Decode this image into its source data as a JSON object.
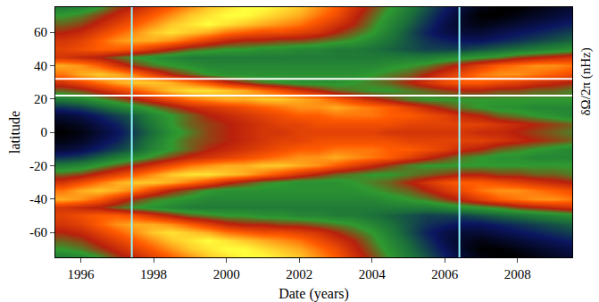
{
  "chart_data": {
    "type": "heatmap",
    "x_label": "Date (years)",
    "y_label": "latitude",
    "z_label": "δΩ/2π (nHz)",
    "xlim": [
      1995.3,
      2009.5
    ],
    "xticks": [
      1996,
      1998,
      2000,
      2002,
      2004,
      2006,
      2008
    ],
    "ylim": [
      -75,
      75
    ],
    "yticks": [
      -60,
      -40,
      -20,
      0,
      20,
      40,
      60
    ],
    "zlim": [
      -1.5,
      1.5
    ],
    "vlines": [
      1997.4,
      2006.4
    ],
    "hlines": [
      22,
      32
    ],
    "x": [
      1995.5,
      1996,
      1996.5,
      1997,
      1997.5,
      1998,
      1998.5,
      1999,
      1999.5,
      2000,
      2000.5,
      2001,
      2001.5,
      2002,
      2002.5,
      2003,
      2003.5,
      2004,
      2004.5,
      2005,
      2005.5,
      2006,
      2006.5,
      2007,
      2007.5,
      2008,
      2008.5,
      2009,
      2009.5
    ],
    "y": [
      -75,
      -70,
      -65,
      -60,
      -55,
      -50,
      -45,
      -40,
      -35,
      -30,
      -25,
      -20,
      -15,
      -10,
      -5,
      0,
      5,
      10,
      15,
      20,
      25,
      30,
      35,
      40,
      45,
      50,
      55,
      60,
      65,
      70,
      75
    ],
    "cells": [
      [
        -0.3,
        -0.2,
        0,
        0.3,
        0.5,
        0.7,
        0.9,
        1.1,
        1.3,
        1.4,
        1.5,
        1.5,
        1.4,
        1.3,
        1.1,
        0.9,
        0.6,
        0.3,
        0,
        -0.3,
        -0.6,
        -0.9,
        -1.2,
        -1.4,
        -1.5,
        -1.5,
        -1.4,
        -1.3,
        -1.2
      ],
      [
        0,
        0.1,
        0.3,
        0.5,
        0.7,
        0.9,
        1.1,
        1.3,
        1.4,
        1.5,
        1.5,
        1.4,
        1.3,
        1.2,
        1.0,
        0.8,
        0.5,
        0.2,
        -0.1,
        -0.4,
        -0.7,
        -1.0,
        -1.3,
        -1.5,
        -1.5,
        -1.4,
        -1.3,
        -1.2,
        -1.1
      ],
      [
        0.2,
        0.3,
        0.5,
        0.7,
        0.9,
        1.1,
        1.3,
        1.4,
        1.5,
        1.4,
        1.3,
        1.2,
        1.1,
        1.0,
        0.8,
        0.6,
        0.4,
        0.1,
        -0.2,
        -0.5,
        -0.8,
        -1.1,
        -1.3,
        -1.4,
        -1.3,
        -1.2,
        -1.1,
        -1.0,
        -0.9
      ],
      [
        0.4,
        0.5,
        0.7,
        0.9,
        1.1,
        1.3,
        1.4,
        1.3,
        1.2,
        1.0,
        0.9,
        0.8,
        0.8,
        0.7,
        0.6,
        0.4,
        0.2,
        0,
        -0.3,
        -0.6,
        -0.9,
        -1.1,
        -1.2,
        -1.2,
        -1.1,
        -1.0,
        -0.9,
        -0.8,
        -0.7
      ],
      [
        0.6,
        0.7,
        0.9,
        1.1,
        1.2,
        1.2,
        1.1,
        0.9,
        0.7,
        0.5,
        0.4,
        0.4,
        0.3,
        0.3,
        0.2,
        0.1,
        0,
        -0.2,
        -0.4,
        -0.6,
        -0.8,
        -0.9,
        -1.0,
        -1.0,
        -0.9,
        -0.8,
        -0.7,
        -0.6,
        -0.5
      ],
      [
        0.7,
        0.8,
        0.9,
        0.9,
        0.8,
        0.6,
        0.4,
        0.2,
        0.1,
        0,
        0,
        -0.1,
        -0.1,
        -0.2,
        -0.2,
        -0.3,
        -0.3,
        -0.4,
        -0.5,
        -0.6,
        -0.7,
        -0.7,
        -0.7,
        -0.6,
        -0.5,
        -0.4,
        -0.3,
        -0.2,
        -0.1
      ],
      [
        0.6,
        0.5,
        0.4,
        0.2,
        0,
        -0.1,
        -0.2,
        -0.3,
        -0.3,
        -0.3,
        -0.3,
        -0.3,
        -0.3,
        -0.3,
        -0.3,
        -0.3,
        -0.3,
        -0.3,
        -0.3,
        -0.3,
        -0.3,
        -0.2,
        -0.1,
        0,
        0.1,
        0.3,
        0.4,
        0.5,
        0.6
      ],
      [
        1.2,
        1.1,
        0.9,
        0.6,
        0.3,
        0.1,
        0,
        -0.1,
        -0.2,
        -0.2,
        -0.2,
        -0.2,
        -0.2,
        -0.2,
        -0.2,
        -0.2,
        -0.2,
        -0.2,
        -0.1,
        0,
        0.1,
        0.3,
        0.5,
        0.7,
        0.9,
        1.0,
        1.1,
        1.1,
        1.0
      ],
      [
        1.0,
        1.2,
        1.3,
        1.2,
        1.0,
        0.7,
        0.4,
        0.2,
        0,
        -0.1,
        -0.1,
        -0.1,
        -0.1,
        -0.1,
        -0.1,
        -0.1,
        -0.1,
        0,
        0.1,
        0.2,
        0.4,
        0.6,
        0.8,
        1.0,
        1.1,
        1.1,
        1.0,
        0.9,
        0.8
      ],
      [
        0.6,
        0.8,
        1.0,
        1.2,
        1.3,
        1.3,
        1.2,
        1.0,
        0.8,
        0.5,
        0.3,
        0.1,
        0,
        -0.1,
        -0.1,
        -0.1,
        0,
        0.1,
        0.2,
        0.4,
        0.6,
        0.8,
        0.9,
        0.9,
        0.8,
        0.7,
        0.6,
        0.5,
        0.4
      ],
      [
        0.2,
        0.3,
        0.5,
        0.7,
        0.9,
        1.1,
        1.3,
        1.4,
        1.4,
        1.3,
        1.2,
        1.0,
        0.8,
        0.6,
        0.4,
        0.2,
        0.1,
        0,
        0,
        0.1,
        0.2,
        0.3,
        0.4,
        0.4,
        0.3,
        0.3,
        0.2,
        0.2,
        0.1
      ],
      [
        -0.3,
        -0.2,
        0,
        0.2,
        0.4,
        0.6,
        0.8,
        1.0,
        1.1,
        1.2,
        1.2,
        1.3,
        1.3,
        1.2,
        1.1,
        0.9,
        0.7,
        0.5,
        0.3,
        0.1,
        0,
        0,
        0,
        0,
        0,
        0,
        0,
        0,
        0
      ],
      [
        -0.8,
        -0.7,
        -0.5,
        -0.3,
        -0.1,
        0.1,
        0.3,
        0.5,
        0.6,
        0.7,
        0.8,
        0.9,
        1.0,
        1.1,
        1.1,
        1.2,
        1.1,
        1.0,
        0.9,
        0.7,
        0.5,
        0.3,
        0.1,
        0,
        -0.1,
        -0.1,
        -0.2,
        -0.2,
        -0.2
      ],
      [
        -1.2,
        -1.1,
        -0.9,
        -0.7,
        -0.5,
        -0.2,
        0,
        0.2,
        0.4,
        0.5,
        0.6,
        0.7,
        0.8,
        0.9,
        0.9,
        1.0,
        1.0,
        1.0,
        0.9,
        0.9,
        0.8,
        0.7,
        0.5,
        0.4,
        0.2,
        0.1,
        0,
        -0.1,
        -0.2
      ],
      [
        -1.4,
        -1.3,
        -1.1,
        -0.9,
        -0.6,
        -0.3,
        0,
        0.2,
        0.3,
        0.4,
        0.5,
        0.6,
        0.7,
        0.7,
        0.8,
        0.8,
        0.8,
        0.8,
        0.8,
        0.7,
        0.7,
        0.7,
        0.7,
        0.7,
        0.6,
        0.5,
        0.4,
        0.3,
        0.2
      ],
      [
        -1.5,
        -1.4,
        -1.2,
        -1.0,
        -0.7,
        -0.4,
        -0.1,
        0.1,
        0.3,
        0.4,
        0.5,
        0.6,
        0.6,
        0.7,
        0.7,
        0.7,
        0.7,
        0.7,
        0.6,
        0.6,
        0.6,
        0.6,
        0.6,
        0.5,
        0.5,
        0.4,
        0.3,
        0.2,
        0.1
      ],
      [
        -1.4,
        -1.3,
        -1.1,
        -0.9,
        -0.6,
        -0.3,
        0,
        0.2,
        0.3,
        0.4,
        0.5,
        0.6,
        0.7,
        0.7,
        0.8,
        0.8,
        0.8,
        0.8,
        0.8,
        0.7,
        0.7,
        0.7,
        0.7,
        0.7,
        0.6,
        0.5,
        0.4,
        0.3,
        0.2
      ],
      [
        -1.2,
        -1.1,
        -0.9,
        -0.7,
        -0.5,
        -0.2,
        0,
        0.2,
        0.4,
        0.5,
        0.6,
        0.7,
        0.8,
        0.9,
        0.9,
        1.0,
        1.0,
        1.0,
        0.9,
        0.9,
        0.8,
        0.7,
        0.5,
        0.4,
        0.2,
        0.1,
        0,
        -0.1,
        -0.2
      ],
      [
        -0.8,
        -0.7,
        -0.5,
        -0.3,
        -0.1,
        0.1,
        0.3,
        0.5,
        0.6,
        0.7,
        0.8,
        0.9,
        1.0,
        1.1,
        1.1,
        1.2,
        1.1,
        1.0,
        0.9,
        0.7,
        0.5,
        0.3,
        0.1,
        0,
        -0.1,
        -0.1,
        -0.2,
        -0.2,
        -0.2
      ],
      [
        -0.3,
        -0.2,
        0,
        0.2,
        0.4,
        0.6,
        0.8,
        1.0,
        1.1,
        1.2,
        1.2,
        1.3,
        1.3,
        1.2,
        1.1,
        0.9,
        0.7,
        0.5,
        0.3,
        0.1,
        0,
        0,
        0,
        0,
        0,
        0,
        0,
        0,
        0
      ],
      [
        0.2,
        0.3,
        0.5,
        0.7,
        0.9,
        1.1,
        1.3,
        1.4,
        1.4,
        1.3,
        1.2,
        1.0,
        0.8,
        0.6,
        0.4,
        0.2,
        0.1,
        0,
        0,
        0.1,
        0.2,
        0.3,
        0.4,
        0.4,
        0.3,
        0.3,
        0.2,
        0.2,
        0.1
      ],
      [
        0.6,
        0.8,
        1.0,
        1.2,
        1.3,
        1.3,
        1.2,
        1.0,
        0.8,
        0.5,
        0.3,
        0.1,
        0,
        -0.1,
        -0.1,
        -0.1,
        0,
        0.1,
        0.2,
        0.4,
        0.6,
        0.8,
        0.9,
        0.9,
        0.8,
        0.7,
        0.6,
        0.5,
        0.4
      ],
      [
        1.0,
        1.2,
        1.3,
        1.2,
        1.0,
        0.7,
        0.4,
        0.2,
        0,
        -0.1,
        -0.1,
        -0.1,
        -0.1,
        -0.1,
        -0.1,
        -0.1,
        -0.1,
        0,
        0.1,
        0.2,
        0.4,
        0.6,
        0.8,
        1.0,
        1.1,
        1.1,
        1.0,
        0.9,
        0.8
      ],
      [
        1.2,
        1.1,
        0.9,
        0.6,
        0.3,
        0.1,
        0,
        -0.1,
        -0.2,
        -0.2,
        -0.2,
        -0.2,
        -0.2,
        -0.2,
        -0.2,
        -0.2,
        -0.2,
        -0.2,
        -0.1,
        0,
        0.1,
        0.3,
        0.5,
        0.7,
        0.9,
        1.0,
        1.1,
        1.1,
        1.0
      ],
      [
        0.6,
        0.5,
        0.4,
        0.2,
        0,
        -0.1,
        -0.2,
        -0.3,
        -0.3,
        -0.3,
        -0.3,
        -0.3,
        -0.3,
        -0.3,
        -0.3,
        -0.3,
        -0.3,
        -0.3,
        -0.3,
        -0.3,
        -0.3,
        -0.2,
        -0.1,
        0,
        0.1,
        0.3,
        0.4,
        0.5,
        0.6
      ],
      [
        0.7,
        0.8,
        0.9,
        0.9,
        0.8,
        0.6,
        0.4,
        0.2,
        0.1,
        0,
        0,
        -0.1,
        -0.1,
        -0.2,
        -0.2,
        -0.3,
        -0.3,
        -0.4,
        -0.5,
        -0.6,
        -0.7,
        -0.7,
        -0.7,
        -0.6,
        -0.5,
        -0.4,
        -0.3,
        -0.2,
        -0.1
      ],
      [
        0.6,
        0.7,
        0.9,
        1.1,
        1.2,
        1.2,
        1.1,
        0.9,
        0.7,
        0.5,
        0.4,
        0.4,
        0.3,
        0.3,
        0.2,
        0.1,
        0,
        -0.2,
        -0.4,
        -0.6,
        -0.8,
        -0.9,
        -1.0,
        -1.0,
        -0.9,
        -0.8,
        -0.7,
        -0.6,
        -0.5
      ],
      [
        0.4,
        0.5,
        0.7,
        0.9,
        1.1,
        1.3,
        1.4,
        1.3,
        1.2,
        1.0,
        0.9,
        0.8,
        0.8,
        0.7,
        0.6,
        0.4,
        0.2,
        0,
        -0.3,
        -0.6,
        -0.9,
        -1.1,
        -1.2,
        -1.2,
        -1.1,
        -1.0,
        -0.9,
        -0.8,
        -0.7
      ],
      [
        0.2,
        0.3,
        0.5,
        0.7,
        0.9,
        1.1,
        1.3,
        1.4,
        1.5,
        1.4,
        1.3,
        1.2,
        1.1,
        1.0,
        0.8,
        0.6,
        0.4,
        0.1,
        -0.2,
        -0.5,
        -0.8,
        -1.1,
        -1.3,
        -1.4,
        -1.3,
        -1.2,
        -1.1,
        -1.0,
        -0.9
      ],
      [
        0,
        0.1,
        0.3,
        0.5,
        0.7,
        0.9,
        1.1,
        1.3,
        1.4,
        1.5,
        1.5,
        1.4,
        1.3,
        1.2,
        1.0,
        0.8,
        0.5,
        0.2,
        -0.1,
        -0.4,
        -0.7,
        -1.0,
        -1.3,
        -1.5,
        -1.5,
        -1.4,
        -1.3,
        -1.2,
        -1.1
      ],
      [
        -0.3,
        -0.2,
        0,
        0.3,
        0.5,
        0.7,
        0.9,
        1.1,
        1.3,
        1.4,
        1.5,
        1.5,
        1.4,
        1.3,
        1.1,
        0.9,
        0.6,
        0.3,
        0,
        -0.3,
        -0.6,
        -0.9,
        -1.2,
        -1.4,
        -1.5,
        -1.5,
        -1.4,
        -1.3,
        -1.2
      ]
    ]
  }
}
